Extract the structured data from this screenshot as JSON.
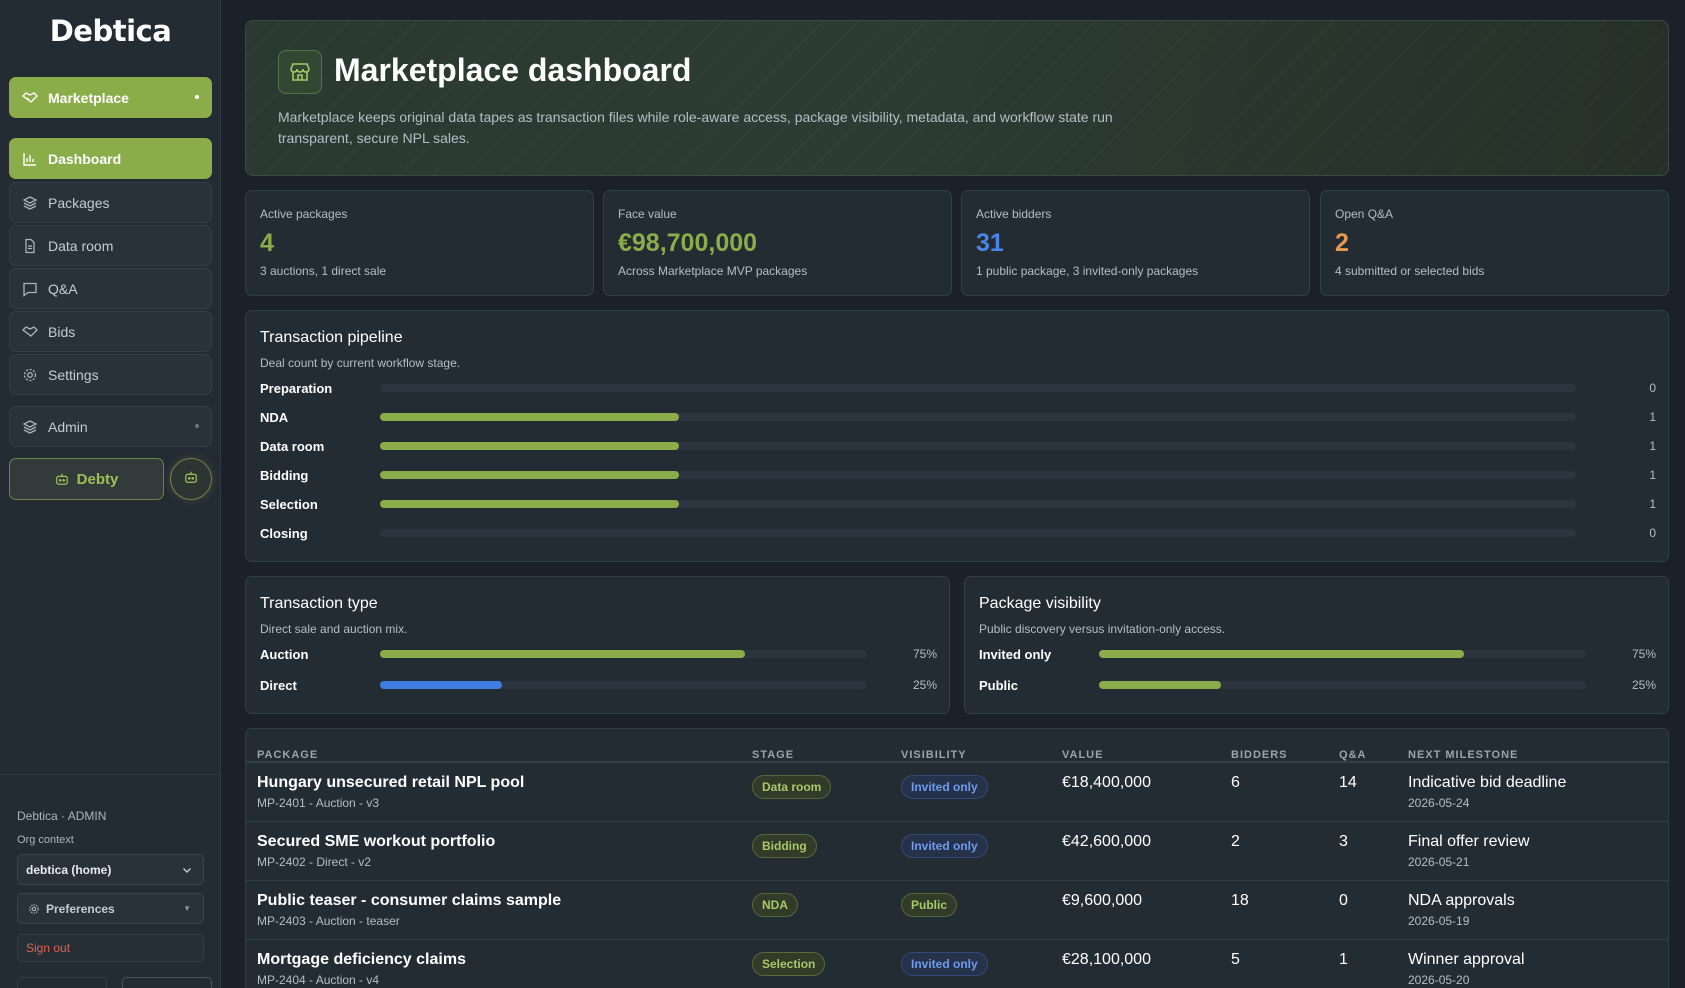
{
  "sidebar": {
    "logo": "Debtica",
    "marketplace_label": "Marketplace",
    "items": [
      {
        "label": "Dashboard",
        "icon": "bar-chart-icon",
        "active": true
      },
      {
        "label": "Packages",
        "icon": "layers-icon"
      },
      {
        "label": "Data room",
        "icon": "document-icon"
      },
      {
        "label": "Q&A",
        "icon": "chat-icon"
      },
      {
        "label": "Bids",
        "icon": "handshake-icon"
      },
      {
        "label": "Settings",
        "icon": "gear-icon"
      }
    ],
    "admin_label": "Admin",
    "debty_label": "Debty",
    "user_line": "Debtica · ADMIN",
    "org_context_label": "Org context",
    "org_select_value": "debtica (home)",
    "preferences_label": "Preferences",
    "signout_label": "Sign out"
  },
  "hero": {
    "title": "Marketplace dashboard",
    "description": "Marketplace keeps original data tapes as transaction files while role-aware access, package visibility, metadata, and workflow state run transparent, secure NPL sales."
  },
  "kpis": [
    {
      "label": "Active packages",
      "value": "4",
      "sub": "3 auctions, 1 direct sale",
      "color": "#8aad4a"
    },
    {
      "label": "Face value",
      "value": "€98,700,000",
      "sub": "Across Marketplace MVP packages",
      "color": "#8aad4a"
    },
    {
      "label": "Active bidders",
      "value": "31",
      "sub": "1 public package, 3 invited-only packages",
      "color": "#4a86ea"
    },
    {
      "label": "Open Q&A",
      "value": "2",
      "sub": "4 submitted or selected bids",
      "color": "#e59a4e"
    }
  ],
  "pipeline": {
    "title": "Transaction pipeline",
    "subtitle": "Deal count by current workflow stage.",
    "max": 4,
    "stages": [
      {
        "label": "Preparation",
        "value": 0,
        "value_text": "0"
      },
      {
        "label": "NDA",
        "value": 1,
        "value_text": "1"
      },
      {
        "label": "Data room",
        "value": 1,
        "value_text": "1"
      },
      {
        "label": "Bidding",
        "value": 1,
        "value_text": "1"
      },
      {
        "label": "Selection",
        "value": 1,
        "value_text": "1"
      },
      {
        "label": "Closing",
        "value": 0,
        "value_text": "0"
      }
    ]
  },
  "transaction_type": {
    "title": "Transaction type",
    "subtitle": "Direct sale and auction mix.",
    "rows": [
      {
        "label": "Auction",
        "percent": 75,
        "value_text": "75%",
        "color": "#8aad4a"
      },
      {
        "label": "Direct",
        "percent": 25,
        "value_text": "25%",
        "color": "#3f7ee0"
      }
    ]
  },
  "visibility": {
    "title": "Package visibility",
    "subtitle": "Public discovery versus invitation-only access.",
    "rows": [
      {
        "label": "Invited only",
        "percent": 75,
        "value_text": "75%",
        "color": "#8aad4a"
      },
      {
        "label": "Public",
        "percent": 25,
        "value_text": "25%",
        "color": "#8aad4a"
      }
    ]
  },
  "table": {
    "headers": [
      "PACKAGE",
      "STAGE",
      "VISIBILITY",
      "VALUE",
      "BIDDERS",
      "Q&A",
      "NEXT MILESTONE"
    ],
    "rows": [
      {
        "name": "Hungary unsecured retail NPL pool",
        "meta": "MP-2401 - Auction - v3",
        "stage": "Data room",
        "visibility": "Invited only",
        "vis_color": "blue",
        "value": "€18,400,000",
        "bidders": "6",
        "qa": "14",
        "milestone": "Indicative bid deadline",
        "date": "2026-05-24"
      },
      {
        "name": "Secured SME workout portfolio",
        "meta": "MP-2402 - Direct - v2",
        "stage": "Bidding",
        "visibility": "Invited only",
        "vis_color": "blue",
        "value": "€42,600,000",
        "bidders": "2",
        "qa": "3",
        "milestone": "Final offer review",
        "date": "2026-05-21"
      },
      {
        "name": "Public teaser - consumer claims sample",
        "meta": "MP-2403 - Auction - teaser",
        "stage": "NDA",
        "visibility": "Public",
        "vis_color": "green",
        "value": "€9,600,000",
        "bidders": "18",
        "qa": "0",
        "milestone": "NDA approvals",
        "date": "2026-05-19"
      },
      {
        "name": "Mortgage deficiency claims",
        "meta": "MP-2404 - Auction - v4",
        "stage": "Selection",
        "visibility": "Invited only",
        "vis_color": "blue",
        "value": "€28,100,000",
        "bidders": "5",
        "qa": "1",
        "milestone": "Winner approval",
        "date": "2026-05-20"
      }
    ]
  }
}
